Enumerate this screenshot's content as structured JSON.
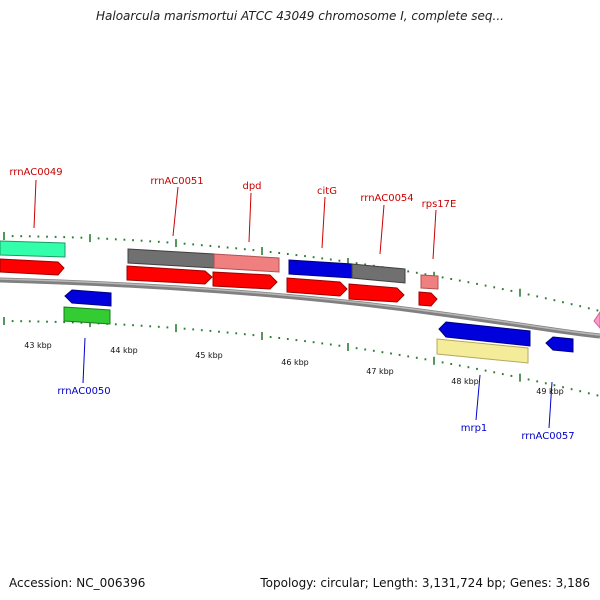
{
  "title": "Haloarcula marismortui ATCC 43049 chromosome I, complete seq...",
  "accession_text": "Accession: NC_006396",
  "summary_text": "Topology: circular; Length: 3,131,724 bp; Genes: 3,186",
  "colors": {
    "backbone": "#808080",
    "top_label": "#cc0000",
    "bottom_label": "#0000cc",
    "tick": "#2e7d32",
    "rrna": "#ff0000",
    "rrna_light": "#f08080",
    "gray": "#707070",
    "blue": "#0000dd",
    "green": "#33cc33",
    "teal": "#33ffaa",
    "yellow": "#f5ec9a",
    "pink": "#ff99cc"
  },
  "scale_labels": [
    "43 kbp",
    "44 kbp",
    "45 kbp",
    "46 kbp",
    "47 kbp",
    "48 kbp",
    "49 kbp"
  ],
  "top_labels": [
    "rrnAC0049",
    "rrnAC0051",
    "dpd",
    "citG",
    "rrnAC0054",
    "rps17E"
  ],
  "bottom_labels": [
    "rrnAC0050",
    "mrp1",
    "rrnAC0057"
  ],
  "legend": []
}
